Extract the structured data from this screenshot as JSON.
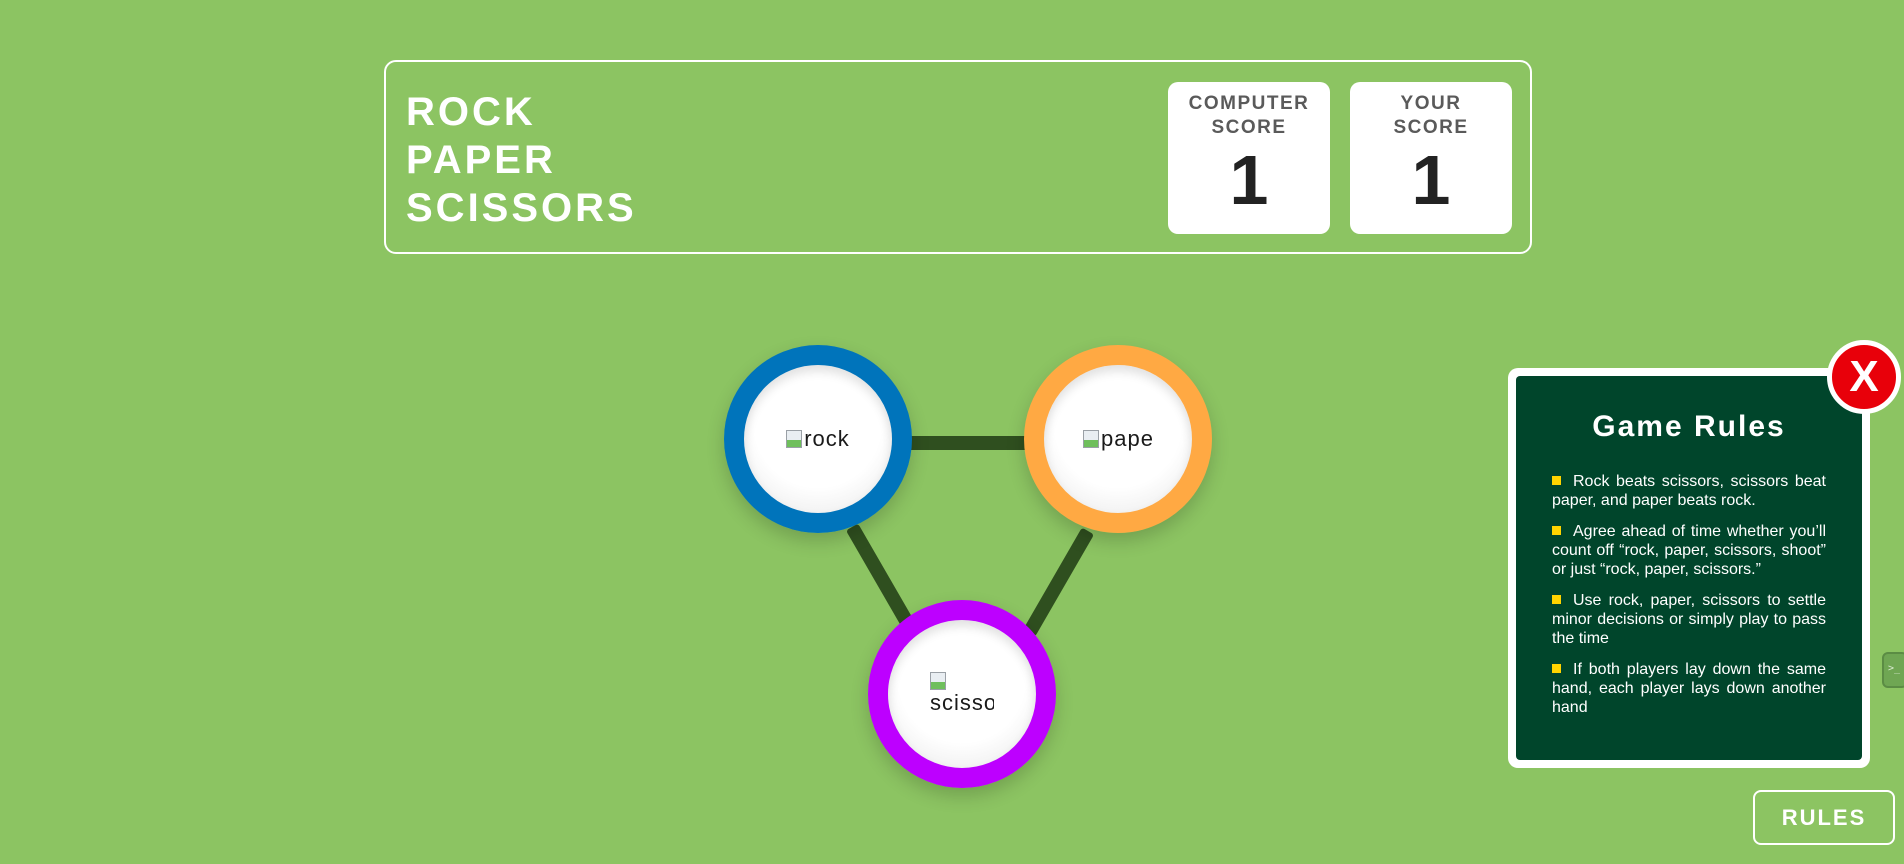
{
  "header": {
    "title_lines": [
      "ROCK",
      "PAPER",
      "SCISSORS"
    ],
    "computer_score_label": "COMPUTER SCORE",
    "computer_score": "1",
    "your_score_label": "YOUR SCORE",
    "your_score": "1"
  },
  "choices": [
    {
      "id": "rock",
      "alt": "rock",
      "color": "#0074bb"
    },
    {
      "id": "paper",
      "alt": "paper",
      "color": "#ffa943"
    },
    {
      "id": "scissors",
      "alt": "scisso",
      "color": "#bd00ff"
    }
  ],
  "rules_panel": {
    "title": "Game Rules",
    "close_label": "X",
    "items": [
      "Rock beats scissors, scissors beat paper, and paper beats rock.",
      "Agree ahead of time whether you’ll count off “rock, paper, scissors, shoot” or just “rock, paper, scissors.”",
      "Use rock, paper, scissors to settle minor decisions or simply play to pass the time",
      "If both players lay down the same hand, each player lays down another hand"
    ]
  },
  "rules_button": {
    "label": "RULES"
  },
  "side_tab": {
    "icon": ">_"
  },
  "colors": {
    "background": "#8cc462",
    "rules_bg": "#00452b",
    "close_red": "#e8000a",
    "bullet": "#ffd400"
  }
}
